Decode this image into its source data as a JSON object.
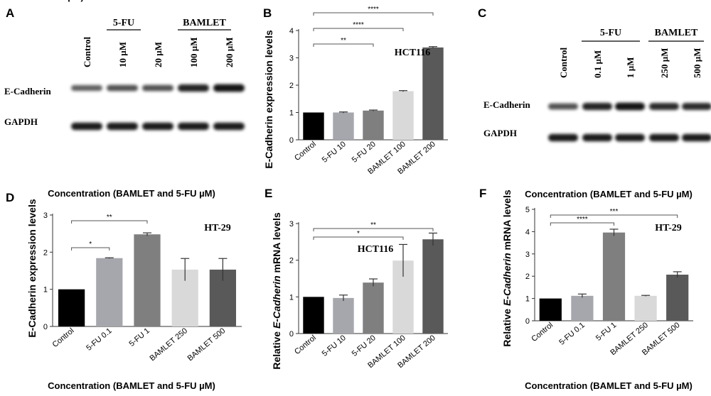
{
  "panels": [
    {
      "letter": "A",
      "kind": "blot",
      "groups": [
        {
          "label": "5-FU"
        },
        {
          "label": "BAMLET"
        }
      ],
      "lanes": [
        "Control",
        "10 µM",
        "20 µM",
        "100 µM",
        "200 µM"
      ],
      "rows": [
        {
          "label": "E-Cadherin",
          "intensity": [
            0.45,
            0.55,
            0.55,
            0.85,
            0.95
          ]
        },
        {
          "label": "GAPDH",
          "intensity": [
            0.9,
            0.9,
            0.9,
            0.9,
            0.9
          ]
        }
      ]
    },
    {
      "letter": "C",
      "kind": "blot",
      "groups": [
        {
          "label": "5-FU"
        },
        {
          "label": "BAMLET"
        }
      ],
      "lanes": [
        "Control",
        "0.1 µM",
        "1 µM",
        "250 µM",
        "500 µM"
      ],
      "rows": [
        {
          "label": "E-Cadherin",
          "intensity": [
            0.55,
            0.85,
            0.95,
            0.8,
            0.8
          ]
        },
        {
          "label": "GAPDH",
          "intensity": [
            0.9,
            0.9,
            0.9,
            0.9,
            0.9
          ]
        }
      ]
    }
  ],
  "chart_data": [
    {
      "letter": "B",
      "type": "bar",
      "ylabel": "E-Cadherin expression levels",
      "ylabel_italic_part": "",
      "xlabel_top": "Concentration (BAMLET and 5-FU µM)",
      "xlabel_bottom": "",
      "cell_line": "HCT116",
      "categories": [
        "Control",
        "5-FU 10",
        "5-FU 20",
        "BAMLET 100",
        "BAMLET 200"
      ],
      "values": [
        1.0,
        1.0,
        1.07,
        1.78,
        3.38
      ],
      "errors": [
        0,
        0.02,
        0.02,
        0.02,
        0.03
      ],
      "colors": [
        "#000000",
        "#a6a6ad",
        "#7f7f7f",
        "#d9d9d9",
        "#595959"
      ],
      "ylim": [
        0,
        4
      ],
      "yticks": [
        "0",
        "1",
        "2",
        "3",
        "4"
      ],
      "significance": [
        {
          "from": 0,
          "to": 2,
          "label": "**"
        },
        {
          "from": 0,
          "to": 3,
          "label": "****"
        },
        {
          "from": 0,
          "to": 4,
          "label": "****"
        }
      ]
    },
    {
      "letter": "D",
      "type": "bar",
      "ylabel": "E-Cadherin expression levels",
      "ylabel_italic_part": "",
      "xlabel_top": "Concentration (BAMLET and 5-FU µM)",
      "xlabel_bottom": "Concentration (BAMLET and 5-FU µM)",
      "cell_line": "HT-29",
      "categories": [
        "Control",
        "5-FU 0.1",
        "5-FU 1",
        "BAMLET 250",
        "BAMLET 500"
      ],
      "values": [
        1.0,
        1.84,
        2.48,
        1.53,
        1.53
      ],
      "errors": [
        0,
        0.01,
        0.04,
        0.3,
        0.3
      ],
      "colors": [
        "#000000",
        "#a6a6ad",
        "#7f7f7f",
        "#d9d9d9",
        "#595959"
      ],
      "ylim": [
        0,
        3
      ],
      "yticks": [
        "0",
        "1",
        "2",
        "3"
      ],
      "significance": [
        {
          "from": 0,
          "to": 1,
          "label": "*"
        },
        {
          "from": 0,
          "to": 2,
          "label": "**"
        }
      ]
    },
    {
      "letter": "E",
      "type": "bar",
      "ylabel": "Relative E-Cadherin mRNA levels",
      "ylabel_italic_part": "E-Cadherin",
      "xlabel_top": "",
      "xlabel_bottom": "",
      "cell_line": "HCT116",
      "categories": [
        "Control",
        "5-FU 10",
        "5-FU 20",
        "BAMLET 100",
        "BAMLET 200"
      ],
      "values": [
        1.0,
        0.97,
        1.39,
        1.99,
        2.57
      ],
      "errors": [
        0,
        0.08,
        0.1,
        0.44,
        0.17
      ],
      "colors": [
        "#000000",
        "#a6a6ad",
        "#7f7f7f",
        "#d9d9d9",
        "#595959"
      ],
      "ylim": [
        0,
        3
      ],
      "yticks": [
        "0",
        "1",
        "2",
        "3"
      ],
      "significance": [
        {
          "from": 0,
          "to": 3,
          "label": "*"
        },
        {
          "from": 0,
          "to": 4,
          "label": "**"
        }
      ]
    },
    {
      "letter": "F",
      "type": "bar",
      "ylabel": "Relative E-Cadherin mRNA levels",
      "ylabel_italic_part": "E-Cadherin",
      "xlabel_top": "Concentration (BAMLET and 5-FU µM)",
      "xlabel_bottom": "Concentration (BAMLET and 5-FU µM)",
      "cell_line": "HT-29",
      "categories": [
        "Control",
        "5-FU 0.1",
        "5-FU 1",
        "BAMLET 250",
        "BAMLET 500"
      ],
      "values": [
        1.0,
        1.12,
        3.96,
        1.12,
        2.07
      ],
      "errors": [
        0,
        0.08,
        0.15,
        0.02,
        0.13
      ],
      "colors": [
        "#000000",
        "#a6a6ad",
        "#7f7f7f",
        "#d9d9d9",
        "#595959"
      ],
      "ylim": [
        0,
        5
      ],
      "yticks": [
        "0",
        "1",
        "2",
        "3",
        "4",
        "5"
      ],
      "significance": [
        {
          "from": 0,
          "to": 2,
          "label": "****"
        },
        {
          "from": 0,
          "to": 4,
          "label": "***"
        }
      ]
    }
  ]
}
